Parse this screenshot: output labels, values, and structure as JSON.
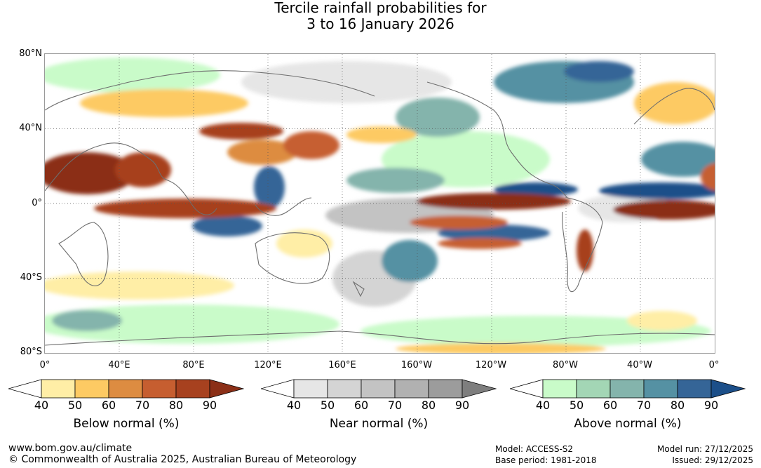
{
  "header": {
    "title_line1": "Tercile rainfall probabilities for",
    "title_line2": "3 to 16 January 2026"
  },
  "map": {
    "lat_labels": [
      "80°N",
      "40°N",
      "0°",
      "40°S",
      "80°S"
    ],
    "lon_labels": [
      "0°",
      "40°E",
      "80°E",
      "120°E",
      "160°E",
      "160°W",
      "120°W",
      "80°W",
      "40°W",
      "0°"
    ]
  },
  "legend": {
    "ticks": [
      "40",
      "50",
      "60",
      "70",
      "80",
      "90"
    ],
    "below": {
      "title": "Below normal (%)",
      "colors": [
        "#ffeea6",
        "#fdca63",
        "#dd8c41",
        "#c65e30",
        "#a7411f",
        "#8b2f17"
      ]
    },
    "near": {
      "title": "Near normal (%)",
      "colors": [
        "#e6e6e6",
        "#d4d4d4",
        "#c3c3c3",
        "#b1b1b1",
        "#9c9c9c",
        "#7e7e7e"
      ]
    },
    "above": {
      "title": "Above normal (%)",
      "colors": [
        "#c9fbc9",
        "#a3d6b5",
        "#84b4ac",
        "#5591a3",
        "#356597",
        "#1c4f89"
      ]
    }
  },
  "footer": {
    "url": "www.bom.gov.au/climate",
    "copyright": "© Commonwealth of Australia 2025, Australian Bureau of Meteorology",
    "model": "Model: ACCESS-S2",
    "base_period": "Base period: 1981-2018",
    "model_run": "Model run: 27/12/2025",
    "issued": "Issued: 29/12/2025"
  }
}
